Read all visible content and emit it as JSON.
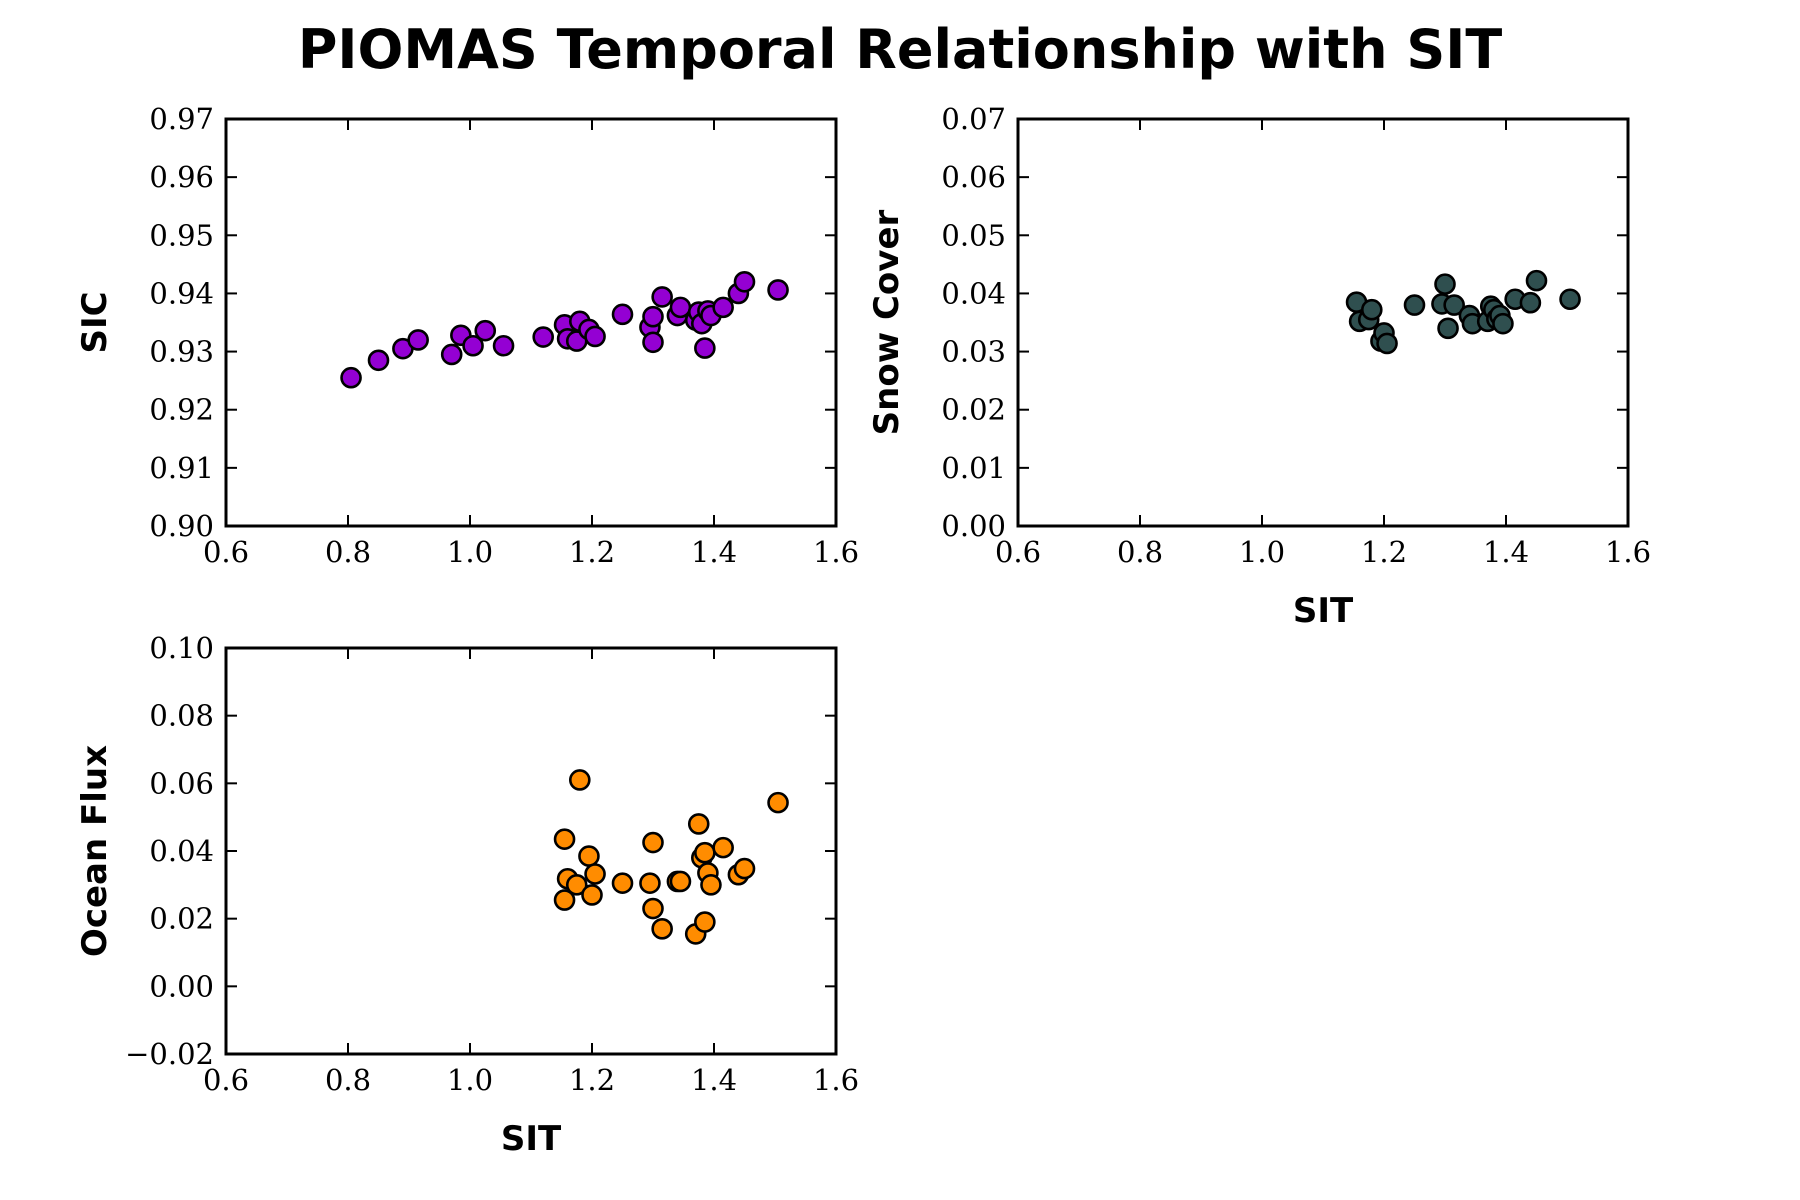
{
  "title": "PIOMAS Temporal Relationship with SIT",
  "chart_data": [
    {
      "type": "scatter",
      "xlabel": "",
      "ylabel": "SIC",
      "xlim": [
        0.6,
        1.6
      ],
      "ylim": [
        0.9,
        0.97
      ],
      "xticks": [
        0.6,
        0.8,
        1.0,
        1.2,
        1.4,
        1.6
      ],
      "yticks": [
        0.9,
        0.91,
        0.92,
        0.93,
        0.94,
        0.95,
        0.96,
        0.97
      ],
      "xtick_labels": [
        "0.6",
        "0.8",
        "1.0",
        "1.2",
        "1.4",
        "1.6"
      ],
      "ytick_labels": [
        "0.90",
        "0.91",
        "0.92",
        "0.93",
        "0.94",
        "0.95",
        "0.96",
        "0.97"
      ],
      "color": "#9400D3",
      "points": [
        [
          0.805,
          0.9255
        ],
        [
          0.85,
          0.9285
        ],
        [
          0.89,
          0.9305
        ],
        [
          0.915,
          0.932
        ],
        [
          0.97,
          0.9295
        ],
        [
          0.985,
          0.9328
        ],
        [
          1.005,
          0.931
        ],
        [
          1.025,
          0.9336
        ],
        [
          1.055,
          0.931
        ],
        [
          1.12,
          0.9325
        ],
        [
          1.155,
          0.9346
        ],
        [
          1.16,
          0.9322
        ],
        [
          1.175,
          0.9318
        ],
        [
          1.18,
          0.9352
        ],
        [
          1.195,
          0.9338
        ],
        [
          1.205,
          0.9326
        ],
        [
          1.25,
          0.9364
        ],
        [
          1.295,
          0.9342
        ],
        [
          1.3,
          0.936
        ],
        [
          1.3,
          0.9316
        ],
        [
          1.315,
          0.9394
        ],
        [
          1.34,
          0.9362
        ],
        [
          1.345,
          0.9376
        ],
        [
          1.37,
          0.9354
        ],
        [
          1.375,
          0.9368
        ],
        [
          1.38,
          0.9348
        ],
        [
          1.385,
          0.9306
        ],
        [
          1.39,
          0.937
        ],
        [
          1.395,
          0.9362
        ],
        [
          1.415,
          0.9376
        ],
        [
          1.44,
          0.94
        ],
        [
          1.45,
          0.942
        ],
        [
          1.505,
          0.9406
        ]
      ]
    },
    {
      "type": "scatter",
      "xlabel": "SIT",
      "ylabel": "Snow Cover",
      "xlim": [
        0.6,
        1.6
      ],
      "ylim": [
        0.0,
        0.07
      ],
      "xticks": [
        0.6,
        0.8,
        1.0,
        1.2,
        1.4,
        1.6
      ],
      "yticks": [
        0.0,
        0.01,
        0.02,
        0.03,
        0.04,
        0.05,
        0.06,
        0.07
      ],
      "xtick_labels": [
        "0.6",
        "0.8",
        "1.0",
        "1.2",
        "1.4",
        "1.6"
      ],
      "ytick_labels": [
        "0.00",
        "0.01",
        "0.02",
        "0.03",
        "0.04",
        "0.05",
        "0.06",
        "0.07"
      ],
      "color": "#2F4F4F",
      "points": [
        [
          1.155,
          0.0385
        ],
        [
          1.16,
          0.0352
        ],
        [
          1.175,
          0.0355
        ],
        [
          1.18,
          0.0372
        ],
        [
          1.195,
          0.0318
        ],
        [
          1.2,
          0.0332
        ],
        [
          1.205,
          0.0314
        ],
        [
          1.25,
          0.038
        ],
        [
          1.295,
          0.0382
        ],
        [
          1.3,
          0.0416
        ],
        [
          1.305,
          0.034
        ],
        [
          1.315,
          0.038
        ],
        [
          1.34,
          0.0362
        ],
        [
          1.345,
          0.0348
        ],
        [
          1.37,
          0.0352
        ],
        [
          1.375,
          0.0378
        ],
        [
          1.38,
          0.0372
        ],
        [
          1.385,
          0.0356
        ],
        [
          1.39,
          0.0362
        ],
        [
          1.395,
          0.0348
        ],
        [
          1.415,
          0.039
        ],
        [
          1.44,
          0.0384
        ],
        [
          1.45,
          0.0422
        ],
        [
          1.505,
          0.039
        ]
      ]
    },
    {
      "type": "scatter",
      "xlabel": "SIT",
      "ylabel": "Ocean Flux",
      "xlim": [
        0.6,
        1.6
      ],
      "ylim": [
        -0.02,
        0.1
      ],
      "xticks": [
        0.6,
        0.8,
        1.0,
        1.2,
        1.4,
        1.6
      ],
      "yticks": [
        -0.02,
        0.0,
        0.02,
        0.04,
        0.06,
        0.08,
        0.1
      ],
      "xtick_labels": [
        "0.6",
        "0.8",
        "1.0",
        "1.2",
        "1.4",
        "1.6"
      ],
      "ytick_labels": [
        "−0.02",
        "0.00",
        "0.02",
        "0.04",
        "0.06",
        "0.08",
        "0.10"
      ],
      "color": "#FF8C00",
      "points": [
        [
          1.155,
          0.0435
        ],
        [
          1.155,
          0.0255
        ],
        [
          1.16,
          0.0318
        ],
        [
          1.175,
          0.03
        ],
        [
          1.18,
          0.061
        ],
        [
          1.195,
          0.0385
        ],
        [
          1.2,
          0.027
        ],
        [
          1.205,
          0.0332
        ],
        [
          1.25,
          0.0305
        ],
        [
          1.295,
          0.0305
        ],
        [
          1.3,
          0.0425
        ],
        [
          1.3,
          0.023
        ],
        [
          1.315,
          0.017
        ],
        [
          1.34,
          0.031
        ],
        [
          1.345,
          0.031
        ],
        [
          1.37,
          0.0155
        ],
        [
          1.375,
          0.048
        ],
        [
          1.38,
          0.038
        ],
        [
          1.385,
          0.019
        ],
        [
          1.385,
          0.0395
        ],
        [
          1.39,
          0.0335
        ],
        [
          1.395,
          0.03
        ],
        [
          1.415,
          0.041
        ],
        [
          1.44,
          0.033
        ],
        [
          1.45,
          0.0348
        ],
        [
          1.505,
          0.0543
        ]
      ]
    }
  ]
}
